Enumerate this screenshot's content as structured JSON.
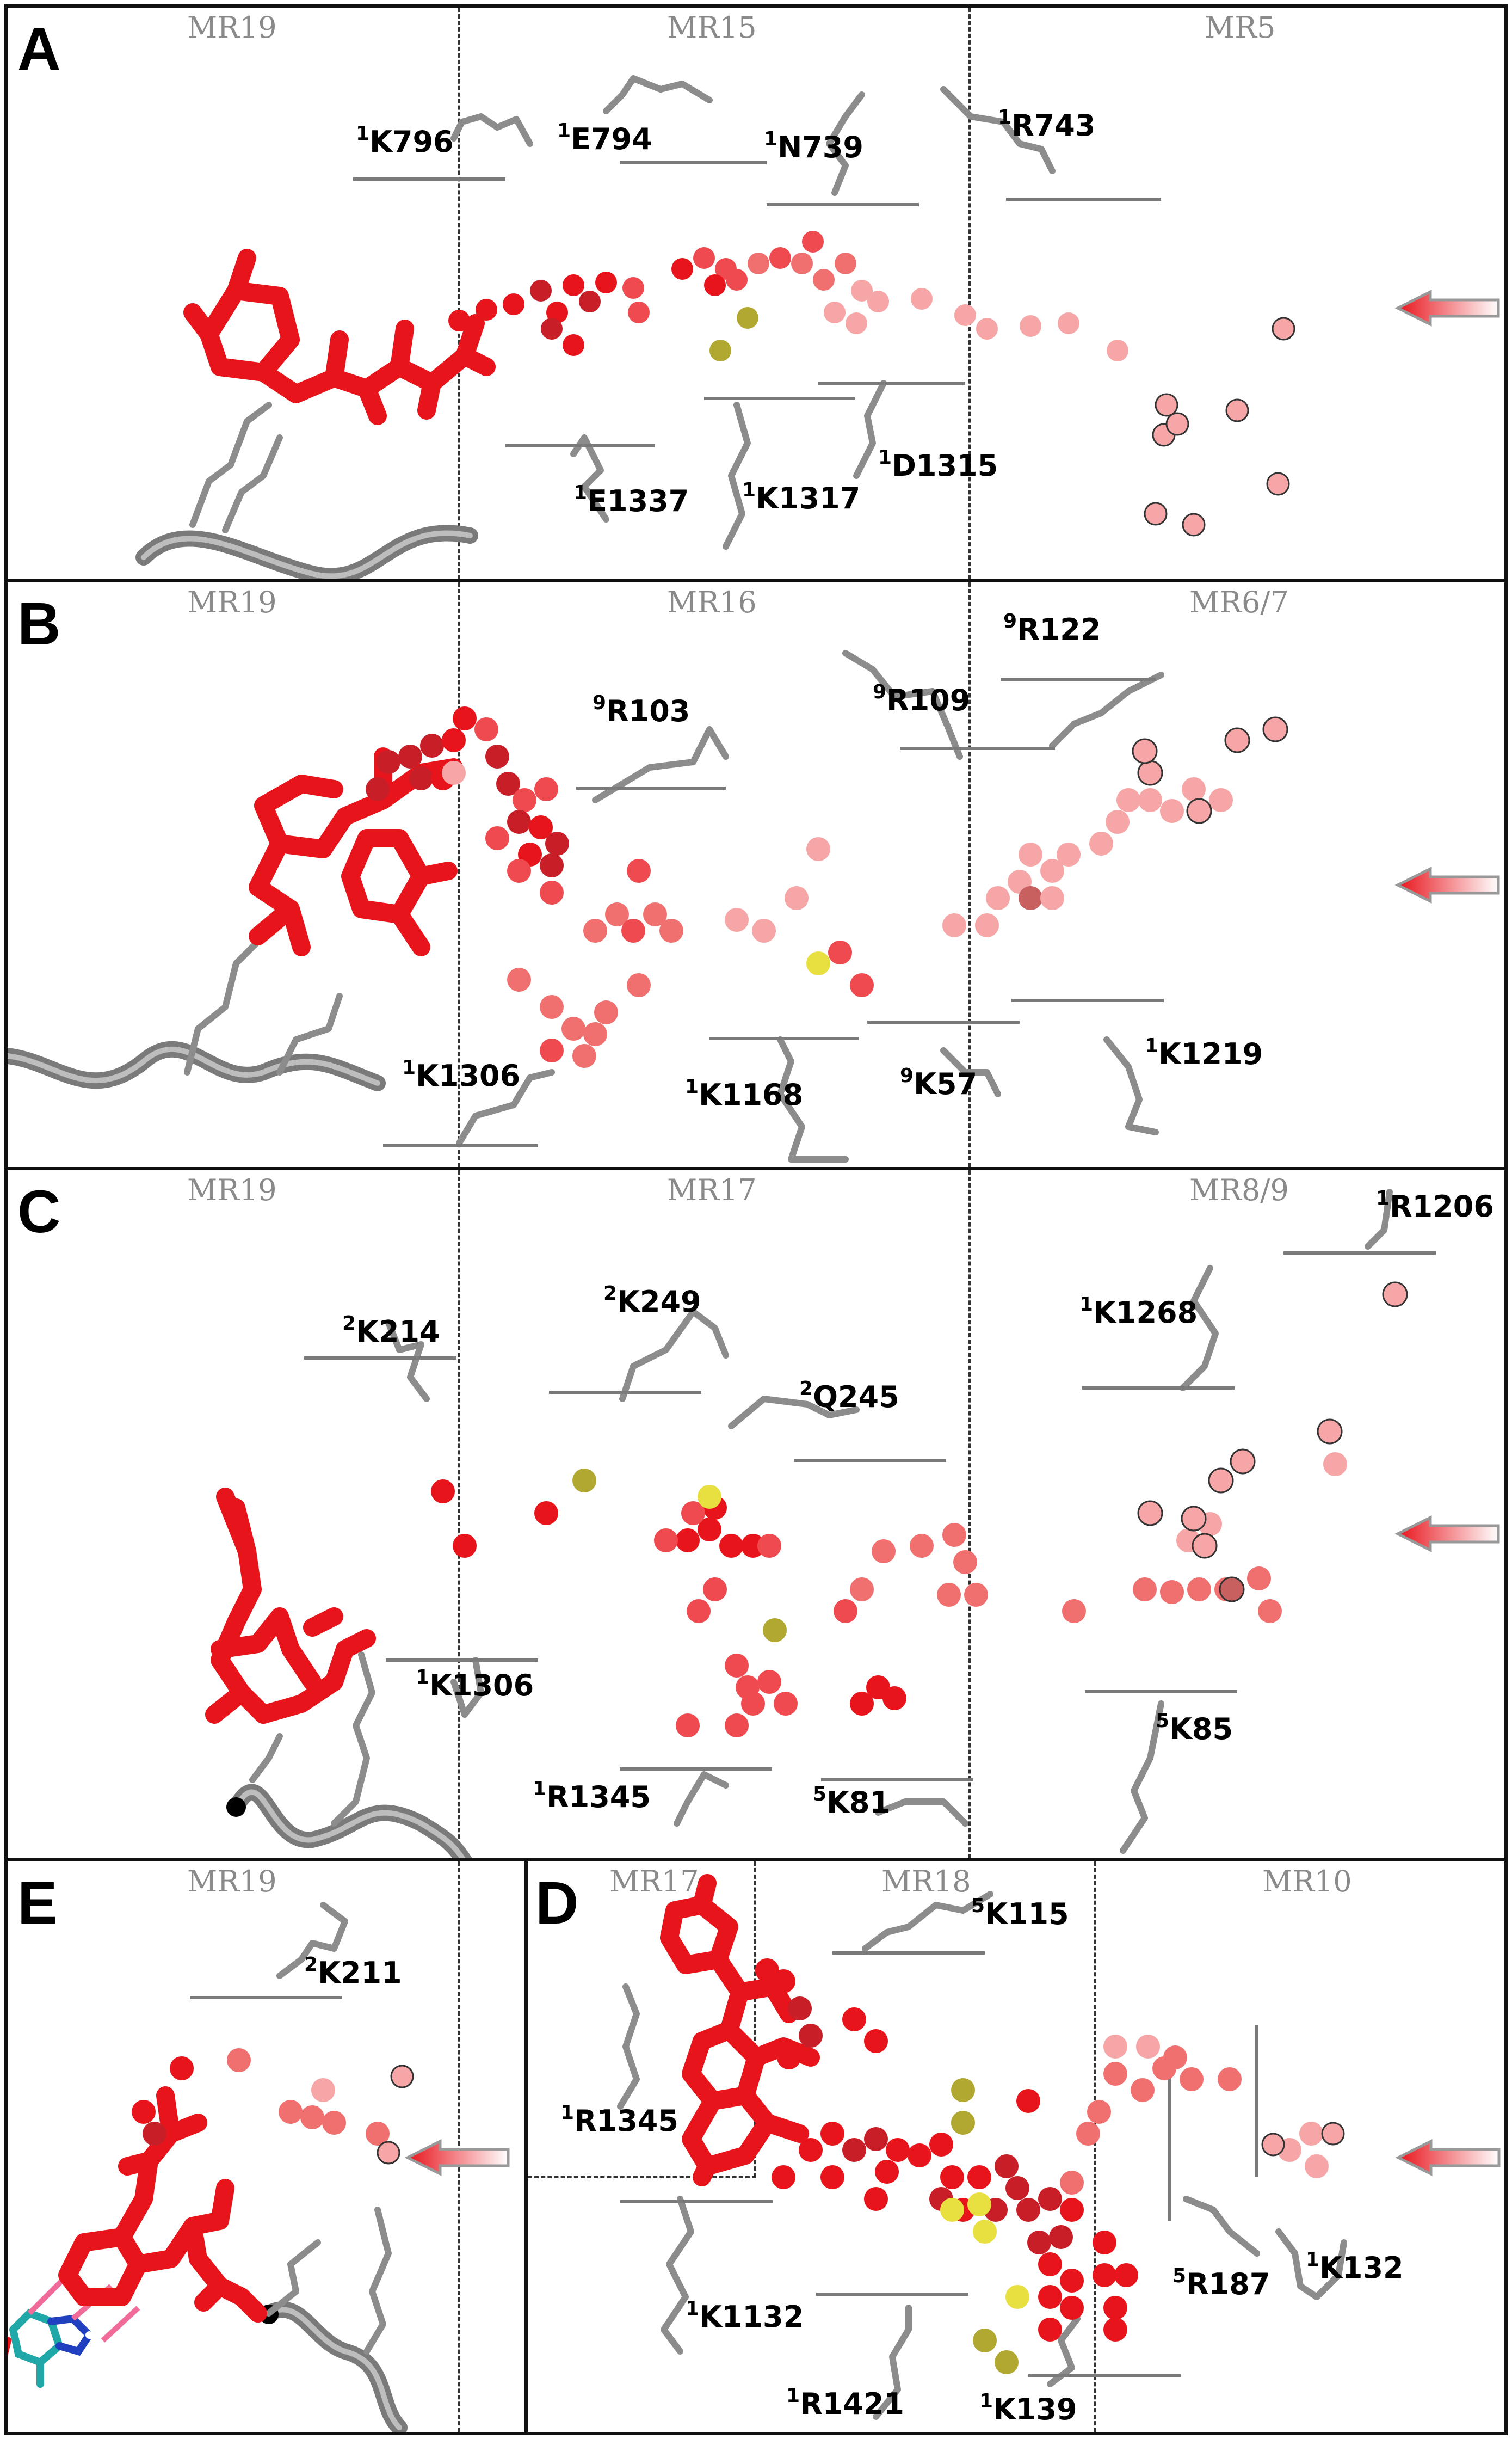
{
  "panels": {
    "A": {
      "letter": "A",
      "regions": [
        "MR19",
        "MR15",
        "MR5"
      ],
      "residues": [
        {
          "num": "1",
          "name": "K796"
        },
        {
          "num": "1",
          "name": "E794"
        },
        {
          "num": "1",
          "name": "N739"
        },
        {
          "num": "1",
          "name": "R743"
        },
        {
          "num": "1",
          "name": "E1337"
        },
        {
          "num": "1",
          "name": "K1317"
        },
        {
          "num": "1",
          "name": "D1315"
        }
      ]
    },
    "B": {
      "letter": "B",
      "regions": [
        "MR19",
        "MR16",
        "MR6/7"
      ],
      "residues": [
        {
          "num": "9",
          "name": "R103"
        },
        {
          "num": "9",
          "name": "R109"
        },
        {
          "num": "9",
          "name": "R122"
        },
        {
          "num": "1",
          "name": "K1306"
        },
        {
          "num": "1",
          "name": "K1168"
        },
        {
          "num": "9",
          "name": "K57"
        },
        {
          "num": "1",
          "name": "K1219"
        }
      ]
    },
    "C": {
      "letter": "C",
      "regions": [
        "MR19",
        "MR17",
        "MR8/9"
      ],
      "residues": [
        {
          "num": "2",
          "name": "K214"
        },
        {
          "num": "2",
          "name": "K249"
        },
        {
          "num": "2",
          "name": "Q245"
        },
        {
          "num": "1",
          "name": "K1268"
        },
        {
          "num": "1",
          "name": "R1206"
        },
        {
          "num": "1",
          "name": "K1306"
        },
        {
          "num": "1",
          "name": "R1345"
        },
        {
          "num": "5",
          "name": "K81"
        },
        {
          "num": "5",
          "name": "K85"
        }
      ]
    },
    "E": {
      "letter": "E",
      "regions": [
        "MR19"
      ],
      "residues": [
        {
          "num": "2",
          "name": "K211"
        }
      ]
    },
    "D": {
      "letter": "D",
      "regions": [
        "MR17",
        "MR18",
        "MR10"
      ],
      "residues": [
        {
          "num": "5",
          "name": "K115"
        },
        {
          "num": "1",
          "name": "R1345"
        },
        {
          "num": "1",
          "name": "K1132"
        },
        {
          "num": "1",
          "name": "R1421"
        },
        {
          "num": "1",
          "name": "K139"
        },
        {
          "num": "5",
          "name": "R187"
        },
        {
          "num": "1",
          "name": "K132"
        }
      ]
    }
  },
  "colors": {
    "ligand": "#e8141c",
    "trajectory_dark": "#c81e28",
    "trajectory_mid": "#ef4a50",
    "trajectory_light": "#f6a6a6",
    "bound_point": "#b0a830",
    "bound_point_bright": "#e8e040",
    "protein": "#8c8c8c",
    "entry_arrow": "#e8141c",
    "region_label": "#8a8a8a"
  },
  "icons": {
    "entry": "red-gradient-arrow-icon"
  }
}
